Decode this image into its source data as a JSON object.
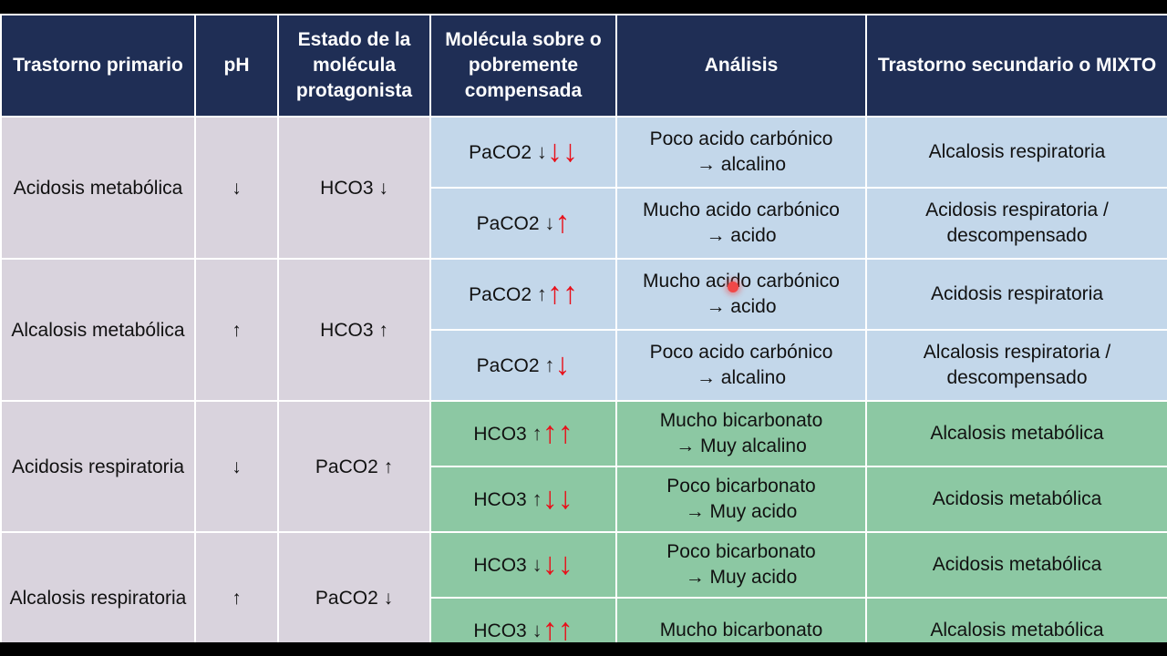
{
  "headers": [
    "Trastorno primario",
    "pH",
    "Estado de la molécula protagonista",
    "Molécula sobre o pobremente compensada",
    "Análisis",
    "Trastorno secundario o MIXTO"
  ],
  "groups": [
    {
      "primary": "Acidosis metabólica",
      "ph": "↓",
      "state": "HCO3 ↓",
      "color": "#c3d7ea",
      "rows": [
        {
          "molecule": "PaCO2",
          "small_arrow": "↓",
          "red_arrows": "↓↓",
          "analysis_1": "Poco acido carbónico",
          "analysis_2": "→ alcalino",
          "secondary_1": "Alcalosis respiratoria",
          "secondary_2": ""
        },
        {
          "molecule": "PaCO2",
          "small_arrow": "↓",
          "red_arrows": "↑",
          "analysis_1": "Mucho acido carbónico",
          "analysis_2": "→ acido",
          "secondary_1": "Acidosis respiratoria /",
          "secondary_2": "descompensado"
        }
      ]
    },
    {
      "primary": "Alcalosis metabólica",
      "ph": "↑",
      "state": "HCO3 ↑",
      "color": "#c3d7ea",
      "rows": [
        {
          "molecule": "PaCO2",
          "small_arrow": "↑",
          "red_arrows": "↑↑",
          "analysis_1": "Mucho acido carbónico",
          "analysis_2": "→ acido",
          "secondary_1": "Acidosis respiratoria",
          "secondary_2": ""
        },
        {
          "molecule": "PaCO2",
          "small_arrow": "↑",
          "red_arrows": "↓",
          "analysis_1": "Poco acido carbónico",
          "analysis_2": "→ alcalino",
          "secondary_1": "Alcalosis respiratoria /",
          "secondary_2": "descompensado"
        }
      ]
    },
    {
      "primary": "Acidosis respiratoria",
      "ph": "↓",
      "state": "PaCO2 ↑",
      "color": "#8cc8a3",
      "rows": [
        {
          "molecule": "HCO3",
          "small_arrow": "↑",
          "red_arrows": "↑↑",
          "analysis_1": "Mucho bicarbonato",
          "analysis_2": "→ Muy alcalino",
          "secondary_1": "Alcalosis metabólica",
          "secondary_2": ""
        },
        {
          "molecule": "HCO3",
          "small_arrow": "↑",
          "red_arrows": "↓↓",
          "analysis_1": "Poco bicarbonato",
          "analysis_2": "→ Muy acido",
          "secondary_1": "Acidosis metabólica",
          "secondary_2": ""
        }
      ]
    },
    {
      "primary": "Alcalosis respiratoria",
      "ph": "↑",
      "state": "PaCO2 ↓",
      "color": "#8cc8a3",
      "rows": [
        {
          "molecule": "HCO3",
          "small_arrow": "↓",
          "red_arrows": "↓↓",
          "analysis_1": "Poco bicarbonato",
          "analysis_2": "→ Muy acido",
          "secondary_1": "Acidosis metabólica",
          "secondary_2": ""
        },
        {
          "molecule": "HCO3",
          "small_arrow": "↓",
          "red_arrows": "↑↑",
          "analysis_1": "Mucho bicarbonato",
          "analysis_2": "",
          "secondary_1": "Alcalosis metabólica",
          "secondary_2": ""
        }
      ]
    }
  ],
  "colors": {
    "header_bg": "#1f2e55",
    "primary_bg": "#d9d3dd",
    "metabolic_rows_bg": "#c3d7ea",
    "respiratory_rows_bg": "#8cc8a3",
    "red_arrow": "#e8101a"
  }
}
